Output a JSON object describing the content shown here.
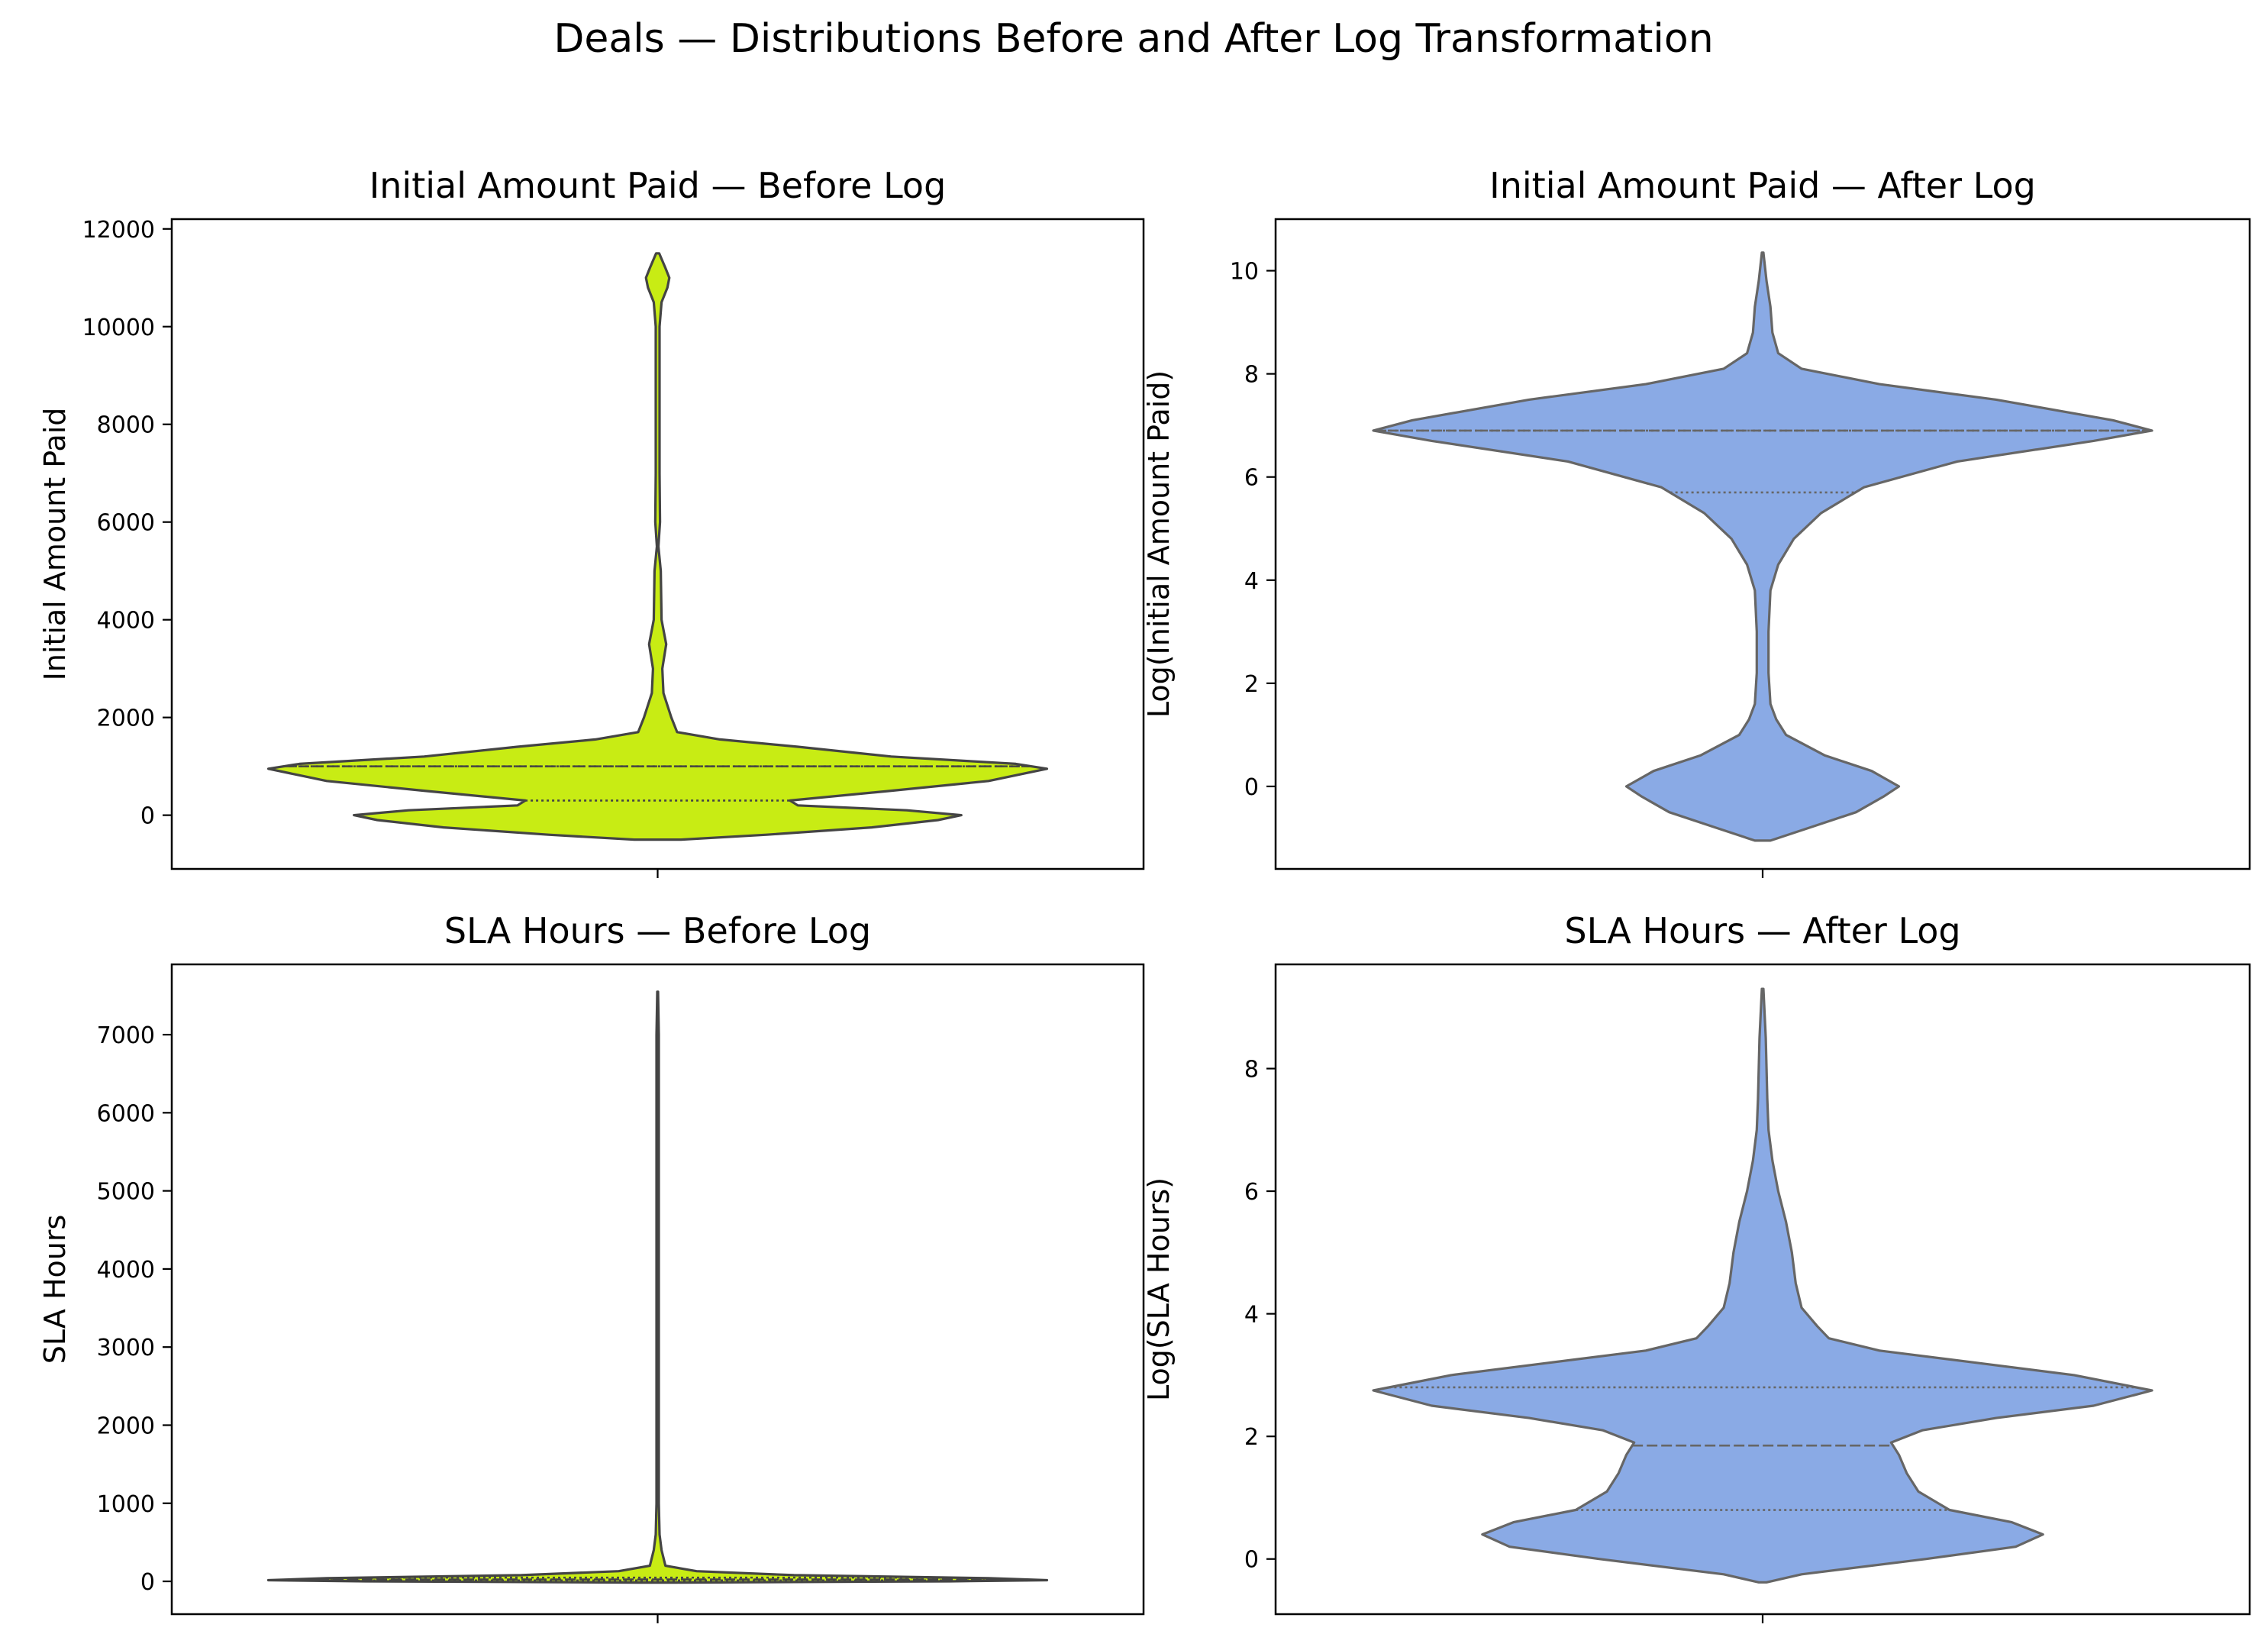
{
  "figure": {
    "title": "Deals — Distributions Before and After Log Transformation"
  },
  "colors": {
    "before_fill": "#c8ec14",
    "after_fill": "#8aaae5",
    "outline_before": "#444444",
    "outline_after": "#666666"
  },
  "chart_data": [
    {
      "type": "violin",
      "title": "Initial Amount Paid — Before Log",
      "xlabel": "",
      "ylabel": "Initial Amount Paid",
      "ylim": [
        -1100,
        12200
      ],
      "yticks": [
        0,
        2000,
        4000,
        6000,
        8000,
        10000,
        12000
      ],
      "yticklabels": [
        "0",
        "2000",
        "4000",
        "6000",
        "8000",
        "10000",
        "12000"
      ],
      "fill": "before",
      "density": [
        [
          -500,
          0.06
        ],
        [
          -400,
          0.28
        ],
        [
          -250,
          0.55
        ],
        [
          -100,
          0.72
        ],
        [
          0,
          0.78
        ],
        [
          100,
          0.64
        ],
        [
          200,
          0.36
        ],
        [
          300,
          0.34
        ],
        [
          500,
          0.6
        ],
        [
          700,
          0.85
        ],
        [
          950,
          1.0
        ],
        [
          1050,
          0.92
        ],
        [
          1200,
          0.6
        ],
        [
          1400,
          0.36
        ],
        [
          1550,
          0.16
        ],
        [
          1700,
          0.05
        ],
        [
          2000,
          0.035
        ],
        [
          2500,
          0.015
        ],
        [
          3000,
          0.012
        ],
        [
          3500,
          0.022
        ],
        [
          4000,
          0.01
        ],
        [
          5000,
          0.008
        ],
        [
          5500,
          0.002
        ],
        [
          6000,
          0.006
        ],
        [
          7000,
          0.005
        ],
        [
          8000,
          0.005
        ],
        [
          9000,
          0.005
        ],
        [
          10000,
          0.005
        ],
        [
          10500,
          0.01
        ],
        [
          10800,
          0.025
        ],
        [
          11000,
          0.03
        ],
        [
          11200,
          0.02
        ],
        [
          11500,
          0.004
        ]
      ],
      "quartiles": [
        300,
        1000,
        1000
      ]
    },
    {
      "type": "violin",
      "title": "Initial Amount Paid — After Log",
      "xlabel": "",
      "ylabel": "Log(Initial Amount Paid)",
      "ylim": [
        -1.6,
        11
      ],
      "yticks": [
        0,
        2,
        4,
        6,
        8,
        10
      ],
      "yticklabels": [
        "0",
        "2",
        "4",
        "6",
        "8",
        "10"
      ],
      "fill": "after",
      "density": [
        [
          -1.05,
          0.02
        ],
        [
          -0.8,
          0.12
        ],
        [
          -0.5,
          0.24
        ],
        [
          -0.2,
          0.31
        ],
        [
          0,
          0.35
        ],
        [
          0.3,
          0.28
        ],
        [
          0.6,
          0.16
        ],
        [
          1.0,
          0.06
        ],
        [
          1.3,
          0.035
        ],
        [
          1.6,
          0.02
        ],
        [
          2.2,
          0.015
        ],
        [
          3.0,
          0.015
        ],
        [
          3.8,
          0.02
        ],
        [
          4.3,
          0.04
        ],
        [
          4.8,
          0.08
        ],
        [
          5.3,
          0.15
        ],
        [
          5.8,
          0.26
        ],
        [
          6.3,
          0.5
        ],
        [
          6.7,
          0.85
        ],
        [
          6.9,
          1.0
        ],
        [
          7.1,
          0.9
        ],
        [
          7.5,
          0.6
        ],
        [
          7.8,
          0.3
        ],
        [
          8.1,
          0.1
        ],
        [
          8.4,
          0.04
        ],
        [
          8.8,
          0.025
        ],
        [
          9.3,
          0.02
        ],
        [
          9.8,
          0.01
        ],
        [
          10.35,
          0.002
        ]
      ],
      "quartiles": [
        5.7,
        6.9,
        6.9
      ]
    },
    {
      "type": "violin",
      "title": "SLA Hours — Before Log",
      "xlabel": "",
      "ylabel": "SLA Hours",
      "ylim": [
        -420,
        7900
      ],
      "yticks": [
        0,
        1000,
        2000,
        3000,
        4000,
        5000,
        6000,
        7000
      ],
      "yticklabels": [
        "0",
        "1000",
        "2000",
        "3000",
        "4000",
        "5000",
        "6000",
        "7000"
      ],
      "fill": "before",
      "density": [
        [
          -15,
          0.05
        ],
        [
          0,
          0.75
        ],
        [
          15,
          1.0
        ],
        [
          40,
          0.85
        ],
        [
          80,
          0.35
        ],
        [
          130,
          0.1
        ],
        [
          200,
          0.02
        ],
        [
          400,
          0.01
        ],
        [
          600,
          0.005
        ],
        [
          1000,
          0.003
        ],
        [
          2000,
          0.003
        ],
        [
          3000,
          0.003
        ],
        [
          4000,
          0.003
        ],
        [
          5000,
          0.003
        ],
        [
          6000,
          0.003
        ],
        [
          7000,
          0.003
        ],
        [
          7550,
          0.001
        ]
      ],
      "quartiles": [
        12,
        24,
        48
      ]
    },
    {
      "type": "violin",
      "title": "SLA Hours — After Log",
      "xlabel": "",
      "ylabel": "Log(SLA Hours)",
      "ylim": [
        -0.9,
        9.7
      ],
      "yticks": [
        0,
        2,
        4,
        6,
        8
      ],
      "yticklabels": [
        "0",
        "2",
        "4",
        "6",
        "8"
      ],
      "fill": "after",
      "density": [
        [
          -0.38,
          0.01
        ],
        [
          -0.25,
          0.1
        ],
        [
          0,
          0.42
        ],
        [
          0.2,
          0.65
        ],
        [
          0.4,
          0.72
        ],
        [
          0.6,
          0.64
        ],
        [
          0.8,
          0.48
        ],
        [
          1.1,
          0.4
        ],
        [
          1.4,
          0.37
        ],
        [
          1.7,
          0.35
        ],
        [
          1.9,
          0.33
        ],
        [
          2.1,
          0.41
        ],
        [
          2.3,
          0.6
        ],
        [
          2.5,
          0.85
        ],
        [
          2.75,
          1.0
        ],
        [
          3.0,
          0.8
        ],
        [
          3.2,
          0.55
        ],
        [
          3.4,
          0.3
        ],
        [
          3.6,
          0.17
        ],
        [
          3.8,
          0.14
        ],
        [
          4.1,
          0.1
        ],
        [
          4.5,
          0.085
        ],
        [
          5.0,
          0.075
        ],
        [
          5.5,
          0.06
        ],
        [
          6.0,
          0.04
        ],
        [
          6.5,
          0.025
        ],
        [
          7.0,
          0.015
        ],
        [
          7.5,
          0.012
        ],
        [
          8.0,
          0.01
        ],
        [
          8.5,
          0.008
        ],
        [
          9.3,
          0.002
        ]
      ],
      "quartiles": [
        0.8,
        1.85,
        2.8
      ]
    }
  ]
}
